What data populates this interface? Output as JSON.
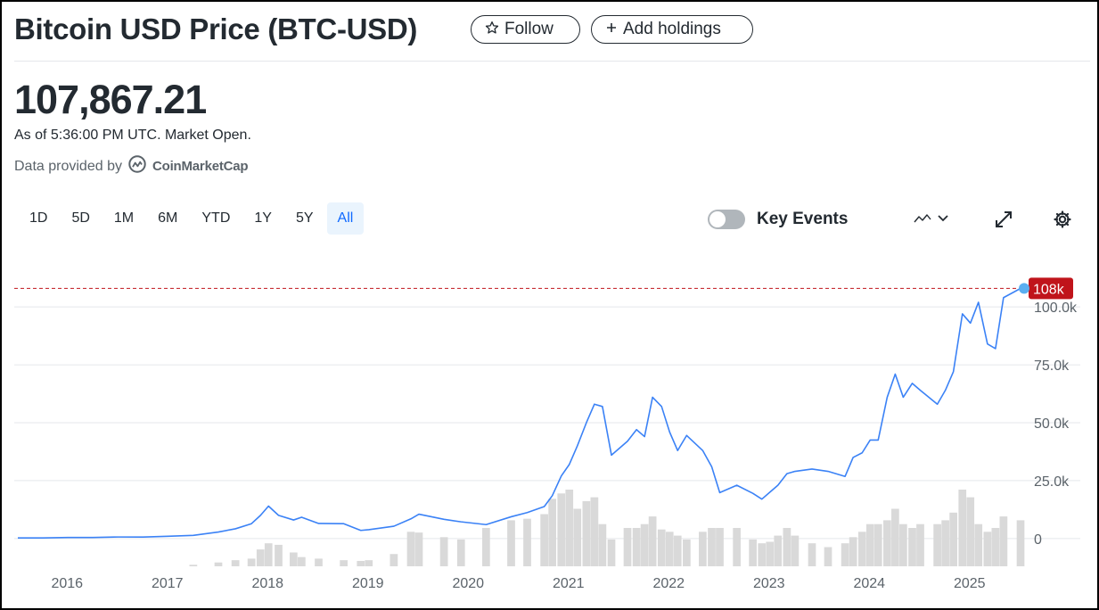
{
  "header": {
    "title": "Bitcoin USD Price (BTC-USD)",
    "follow_label": "Follow",
    "add_holdings_label": "Add holdings"
  },
  "quote": {
    "price": "107,867.21",
    "as_of": "As of 5:36:00 PM UTC. Market Open.",
    "provider_prefix": "Data provided by",
    "provider_name": "CoinMarketCap"
  },
  "ranges": [
    "1D",
    "5D",
    "1M",
    "6M",
    "YTD",
    "1Y",
    "5Y",
    "All"
  ],
  "active_range": "All",
  "key_events": {
    "label": "Key Events",
    "enabled": false
  },
  "icons": {
    "follow": "star-icon",
    "add": "plus-icon",
    "chart_type": "line-chart-icon",
    "dropdown": "chevron-down-icon",
    "fullscreen": "expand-icon",
    "settings": "gear-icon",
    "provider_logo": "coinmarketcap-logo"
  },
  "colors": {
    "line": "#3b82f6",
    "volume": "#d9d9d9",
    "current_price_badge": "#c0141b",
    "active_range": "#0f69ff",
    "grid": "#e5e7eb"
  },
  "chart_data": {
    "type": "line",
    "x_unit": "year",
    "x": [
      2015.5,
      2015.75,
      2016.0,
      2016.25,
      2016.5,
      2016.75,
      2017.0,
      2017.25,
      2017.5,
      2017.67,
      2017.83,
      2017.92,
      2018.0,
      2018.1,
      2018.25,
      2018.33,
      2018.5,
      2018.75,
      2018.92,
      2019.0,
      2019.25,
      2019.42,
      2019.5,
      2019.75,
      2019.92,
      2020.17,
      2020.42,
      2020.58,
      2020.75,
      2020.83,
      2020.92,
      2021.0,
      2021.08,
      2021.17,
      2021.25,
      2021.33,
      2021.42,
      2021.58,
      2021.67,
      2021.75,
      2021.83,
      2021.92,
      2022.0,
      2022.08,
      2022.17,
      2022.33,
      2022.42,
      2022.5,
      2022.67,
      2022.83,
      2022.92,
      2023.0,
      2023.08,
      2023.17,
      2023.25,
      2023.42,
      2023.58,
      2023.75,
      2023.83,
      2023.92,
      2024.0,
      2024.08,
      2024.17,
      2024.25,
      2024.33,
      2024.42,
      2024.5,
      2024.67,
      2024.75,
      2024.83,
      2024.92,
      2025.0,
      2025.08,
      2025.17,
      2025.25,
      2025.33,
      2025.5
    ],
    "y": [
      260,
      250,
      430,
      450,
      660,
      640,
      990,
      1350,
      2800,
      4200,
      6400,
      10000,
      14000,
      10000,
      8000,
      9200,
      6500,
      6400,
      3500,
      3800,
      5300,
      8500,
      10500,
      8300,
      7200,
      6000,
      9400,
      11200,
      13800,
      18500,
      27000,
      32000,
      40000,
      50000,
      58000,
      57000,
      36000,
      42000,
      47000,
      44000,
      61000,
      57000,
      46000,
      38000,
      44500,
      38000,
      31000,
      19800,
      23000,
      19500,
      17000,
      20000,
      23000,
      28000,
      29000,
      30000,
      29000,
      26800,
      35000,
      37000,
      42500,
      42500,
      61000,
      71000,
      61000,
      67000,
      64000,
      58000,
      64000,
      72000,
      97000,
      93000,
      102000,
      84000,
      82000,
      104000,
      108000
    ],
    "volume_relative": [
      0,
      0,
      0,
      0,
      0,
      0,
      0,
      0.02,
      0.05,
      0.08,
      0.1,
      0.22,
      0.3,
      0.28,
      0.18,
      0.12,
      0.1,
      0.08,
      0.07,
      0.08,
      0.16,
      0.45,
      0.44,
      0.38,
      0.35,
      0.5,
      0.6,
      0.62,
      0.68,
      0.88,
      0.95,
      1.0,
      0.75,
      0.85,
      0.9,
      0.55,
      0.35,
      0.5,
      0.5,
      0.55,
      0.65,
      0.48,
      0.45,
      0.4,
      0.35,
      0.45,
      0.5,
      0.5,
      0.5,
      0.35,
      0.3,
      0.32,
      0.4,
      0.5,
      0.4,
      0.3,
      0.25,
      0.3,
      0.38,
      0.45,
      0.55,
      0.55,
      0.6,
      0.75,
      0.55,
      0.5,
      0.55,
      0.55,
      0.6,
      0.7,
      1.0,
      0.9,
      0.55,
      0.45,
      0.5,
      0.65,
      0.6
    ],
    "ylim": [
      -12000,
      117000
    ],
    "y_ticks": [
      0,
      25000,
      50000,
      75000,
      100000
    ],
    "y_tick_labels": [
      "0",
      "25.0k",
      "50.0k",
      "75.0k",
      "100.0k"
    ],
    "x_ticks": [
      2016,
      2017,
      2018,
      2019,
      2020,
      2021,
      2022,
      2023,
      2024,
      2025
    ],
    "x_tick_labels": [
      "2016",
      "2017",
      "2018",
      "2019",
      "2020",
      "2021",
      "2022",
      "2023",
      "2024",
      "2025"
    ],
    "xlim": [
      2015.5,
      2025.5
    ],
    "current_value": 108000,
    "current_label": "108k",
    "grid": true,
    "title": "",
    "xlabel": "",
    "ylabel": ""
  }
}
